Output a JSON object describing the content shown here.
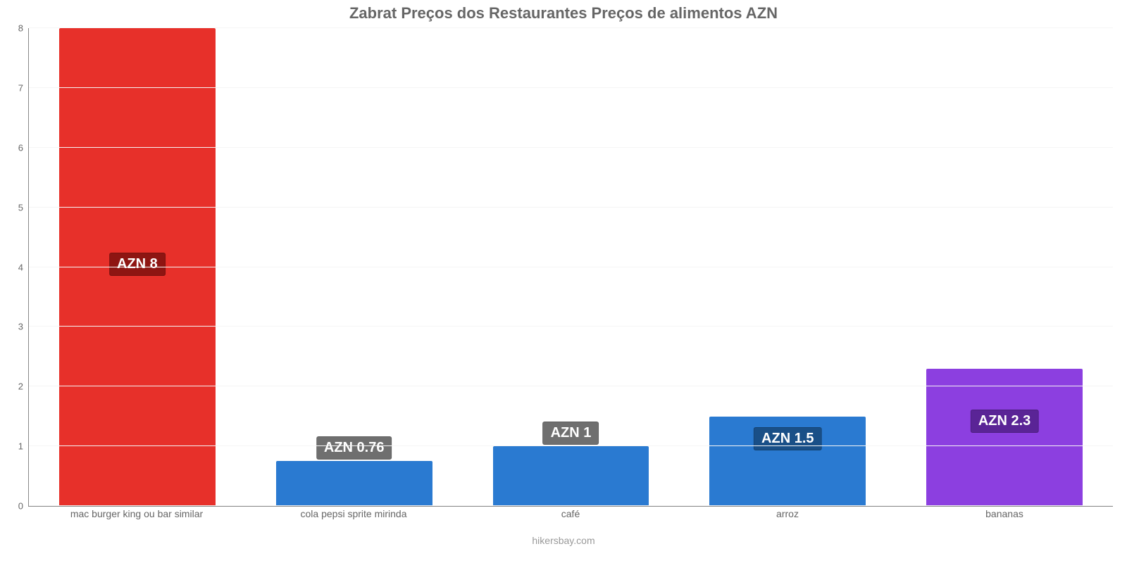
{
  "chart": {
    "type": "bar",
    "title": "Zabrat Preços dos Restaurantes Preços de alimentos AZN",
    "title_color": "#666666",
    "title_fontsize": 22,
    "footer": "hikersbay.com",
    "footer_color": "#999999",
    "footer_fontsize": 14,
    "background_color": "#ffffff",
    "grid_color": "#f5f5f5",
    "axis_color": "#888888",
    "ylim_min": 0,
    "ylim_max": 8,
    "ytick_step": 1,
    "yticks": [
      0,
      1,
      2,
      3,
      4,
      5,
      6,
      7,
      8
    ],
    "ytick_color": "#666666",
    "xlabel_color": "#666666",
    "xlabel_fontsize": 14,
    "bar_width_pct": 72,
    "value_badge_fontsize": 20,
    "bars": [
      {
        "category": "mac burger king ou bar similar",
        "value": 8,
        "value_label": "AZN 8",
        "bar_color": "#e7302a",
        "badge_bg": "#8e1512",
        "badge_top_pct": 47
      },
      {
        "category": "cola pepsi sprite mirinda",
        "value": 0.76,
        "value_label": "AZN 0.76",
        "bar_color": "#2a7ad1",
        "badge_bg": "#6f6f6f",
        "badge_top_pct": -20
      },
      {
        "category": "café",
        "value": 1,
        "value_label": "AZN 1",
        "bar_color": "#2a7ad1",
        "badge_bg": "#6f6f6f",
        "badge_top_pct": -15
      },
      {
        "category": "arroz",
        "value": 1.5,
        "value_label": "AZN 1.5",
        "bar_color": "#2a7ad1",
        "badge_bg": "#194f87",
        "badge_top_pct": 12
      },
      {
        "category": "bananas",
        "value": 2.3,
        "value_label": "AZN 2.3",
        "bar_color": "#8c3fe0",
        "badge_bg": "#5a2496",
        "badge_top_pct": 30
      }
    ]
  }
}
